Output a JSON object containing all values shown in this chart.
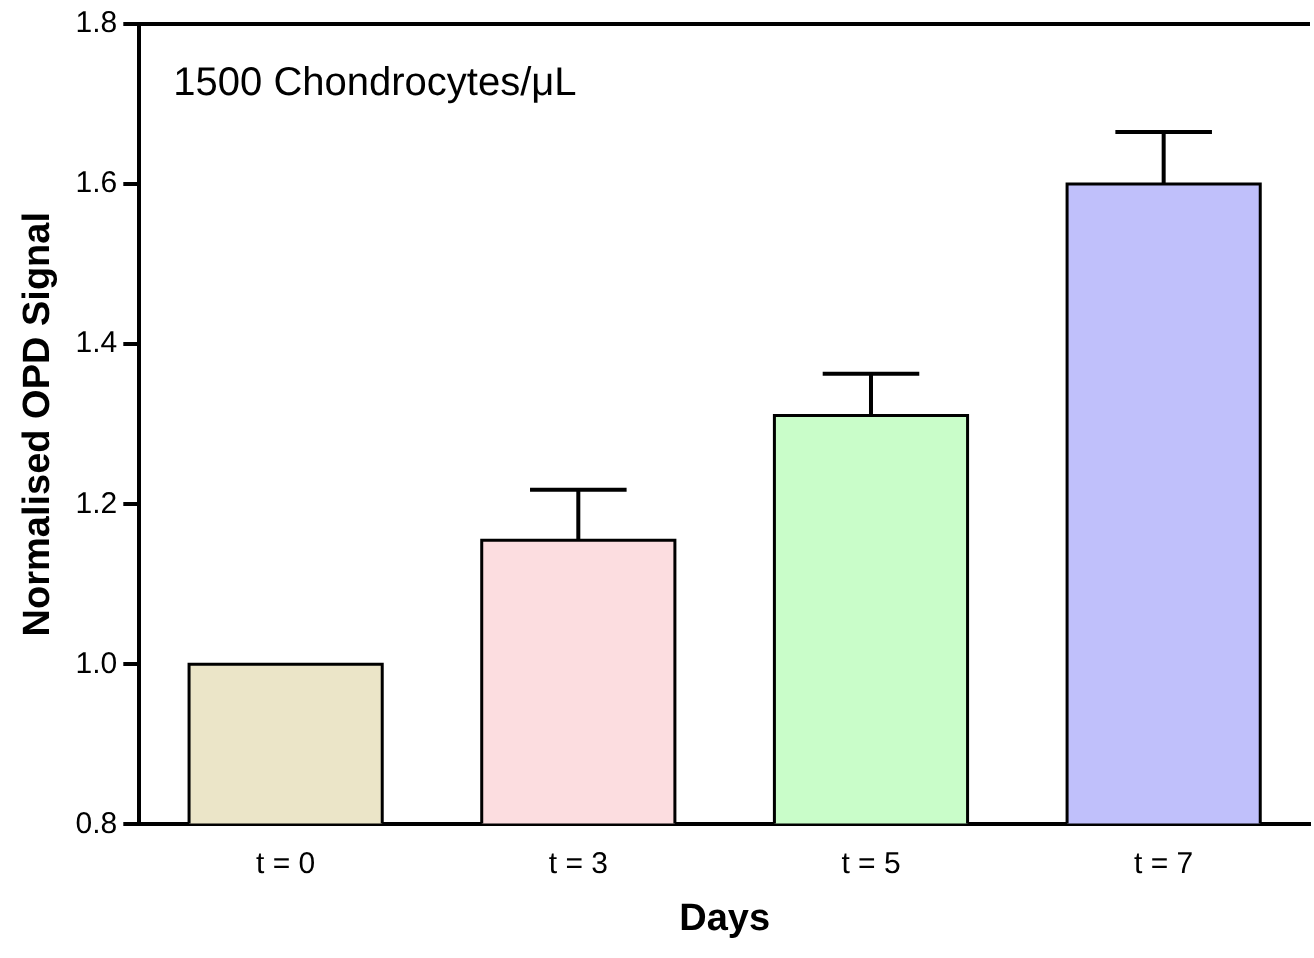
{
  "chart_data": {
    "type": "bar",
    "xlabel": "Days",
    "ylabel": "Normalised OPD Signal",
    "annotations": [
      "1500 Chondrocytes/μL"
    ],
    "categories": [
      "t = 0",
      "t = 3",
      "t = 5",
      "t = 7"
    ],
    "values": [
      1.0,
      1.155,
      1.311,
      1.6
    ],
    "colors": [
      "#ebe5c8",
      "#fcdde0",
      "#c9fdc9",
      "#c0c0fb"
    ],
    "errors": [
      null,
      [
        1.155,
        1.218
      ],
      [
        1.311,
        1.363
      ],
      [
        1.6,
        1.665
      ]
    ],
    "ylim": [
      0.8,
      1.8
    ],
    "yticks": [
      0.8,
      {
        "value": 1,
        "label": "1.0"
      },
      1.2,
      1.4,
      1.6,
      1.8
    ],
    "grid": false
  }
}
